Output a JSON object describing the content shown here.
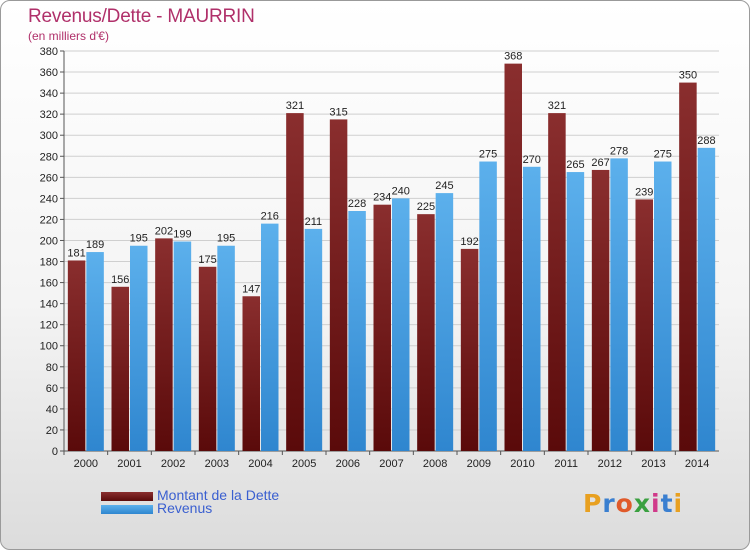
{
  "title": "Revenus/Dette - MAURRIN",
  "subtitle": "(en milliers d'€)",
  "brand": "Proxiti",
  "colors": {
    "debt_top": "#8a2e2e",
    "debt_bottom": "#5a0a0a",
    "rev_top": "#5cb0ec",
    "rev_bottom": "#2f86cf",
    "title": "#b0306a",
    "legend_text": "#3a5fd0"
  },
  "chart_data": {
    "type": "bar",
    "title": "Revenus/Dette - MAURRIN",
    "subtitle": "(en milliers d'€)",
    "categories": [
      "2000",
      "2001",
      "2002",
      "2003",
      "2004",
      "2005",
      "2006",
      "2007",
      "2008",
      "2009",
      "2010",
      "2011",
      "2012",
      "2013",
      "2014"
    ],
    "series": [
      {
        "name": "Montant de la Dette",
        "values": [
          181,
          156,
          202,
          175,
          147,
          321,
          315,
          234,
          225,
          192,
          368,
          321,
          267,
          239,
          350
        ]
      },
      {
        "name": "Revenus",
        "values": [
          189,
          195,
          199,
          195,
          216,
          211,
          228,
          240,
          245,
          275,
          270,
          265,
          278,
          275,
          288
        ]
      }
    ],
    "ylim": [
      0,
      380
    ],
    "ytick_step": 20,
    "grid": true,
    "legend": "bottom-left"
  }
}
